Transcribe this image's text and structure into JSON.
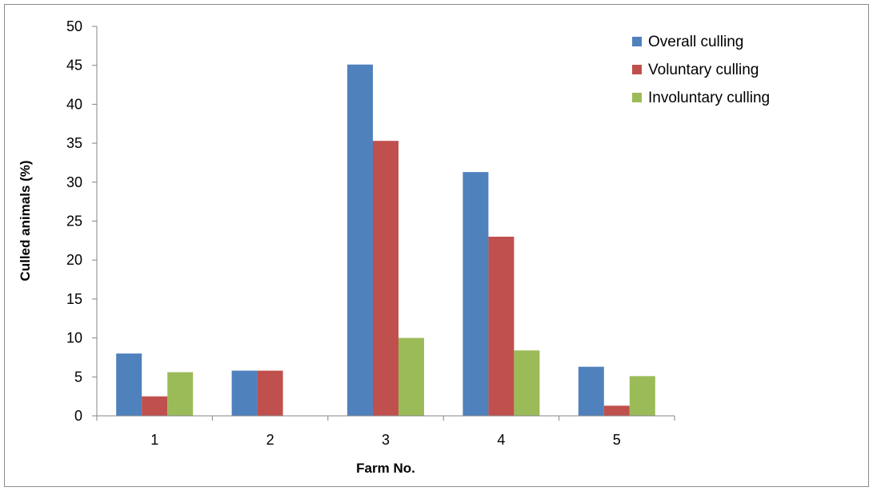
{
  "chart_data": {
    "type": "bar",
    "title": "",
    "xlabel": "Farm No.",
    "ylabel": "Culled animals (%)",
    "categories": [
      "1",
      "2",
      "3",
      "4",
      "5"
    ],
    "ylim": [
      0,
      50
    ],
    "yticks": [
      0,
      5,
      10,
      15,
      20,
      25,
      30,
      35,
      40,
      45,
      50
    ],
    "grid": false,
    "legend_position": "top-right",
    "series": [
      {
        "name": "Overall culling",
        "color": "#4f81bd",
        "values": [
          8.0,
          5.8,
          45.1,
          31.3,
          6.3
        ]
      },
      {
        "name": "Voluntary culling",
        "color": "#c0504d",
        "values": [
          2.5,
          5.8,
          35.3,
          23.0,
          1.3
        ]
      },
      {
        "name": "Involuntary culling",
        "color": "#9bbb59",
        "values": [
          5.6,
          0,
          10.0,
          8.4,
          5.1
        ]
      }
    ]
  }
}
